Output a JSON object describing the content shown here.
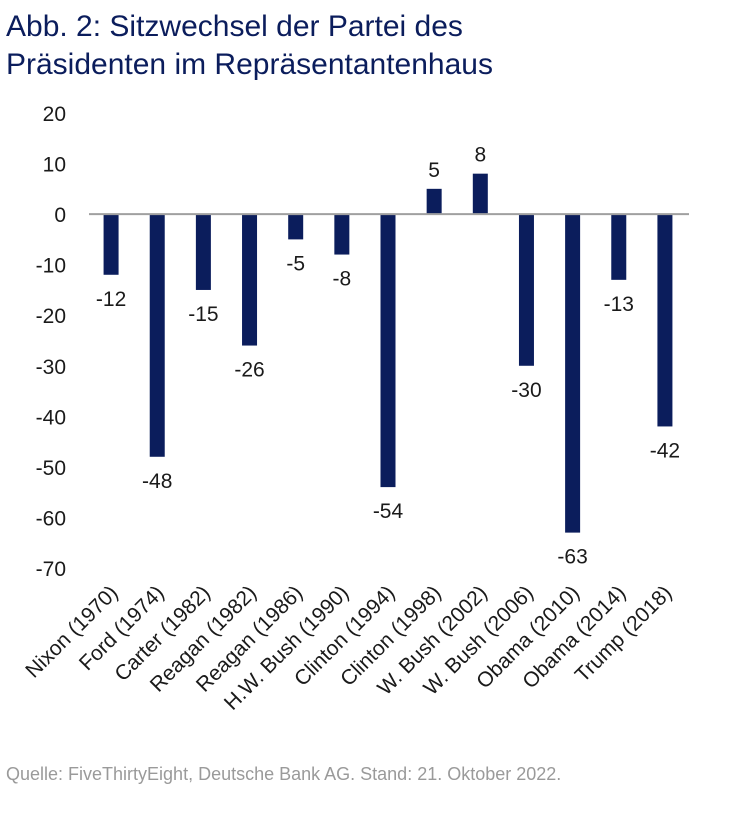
{
  "title": {
    "line1": "Abb. 2: Sitzwechsel der Partei des",
    "line2": "Präsidenten im Repräsentantenhaus"
  },
  "source": "Quelle: FiveThirtyEight, Deutsche Bank AG. Stand: 21. Oktober 2022.",
  "chart_data": {
    "type": "bar",
    "title": "Abb. 2: Sitzwechsel der Partei des Präsidenten im Repräsentantenhaus",
    "xlabel": "",
    "ylabel": "",
    "ylim": [
      -70,
      20
    ],
    "yticks": [
      20,
      10,
      0,
      -10,
      -20,
      -30,
      -40,
      -50,
      -60,
      -70
    ],
    "grid": false,
    "categories": [
      "Nixon (1970)",
      "Ford (1974)",
      "Carter (1982)",
      "Reagan (1982)",
      "Reagan (1986)",
      "H.W. Bush (1990)",
      "Clinton (1994)",
      "Clinton (1998)",
      "W. Bush (2002)",
      "W. Bush (2006)",
      "Obama (2010)",
      "Obama (2014)",
      "Trump (2018)"
    ],
    "values": [
      -12,
      -48,
      -15,
      -26,
      -5,
      -8,
      -54,
      5,
      8,
      -30,
      -63,
      -13,
      -42
    ],
    "bar_color": "#0b1d5c",
    "axis_color": "#a0a0a0"
  }
}
